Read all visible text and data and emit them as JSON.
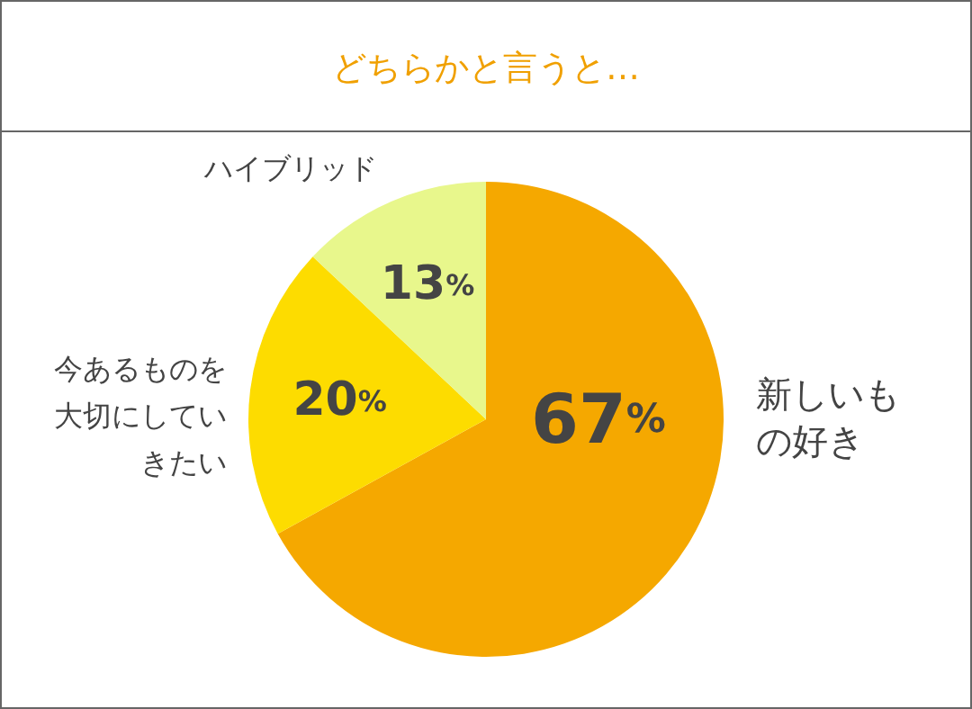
{
  "chart_data": {
    "type": "pie",
    "title": "どちらかと言うと…",
    "categories": [
      "新しいもの好き",
      "今あるものを大切にしていきたい",
      "ハイブリッド"
    ],
    "values": [
      67,
      20,
      13
    ],
    "colors": [
      "#f5a800",
      "#fddc00",
      "#e8f78c"
    ],
    "value_labels": [
      "67%",
      "20%",
      "13%"
    ],
    "legend": false
  }
}
